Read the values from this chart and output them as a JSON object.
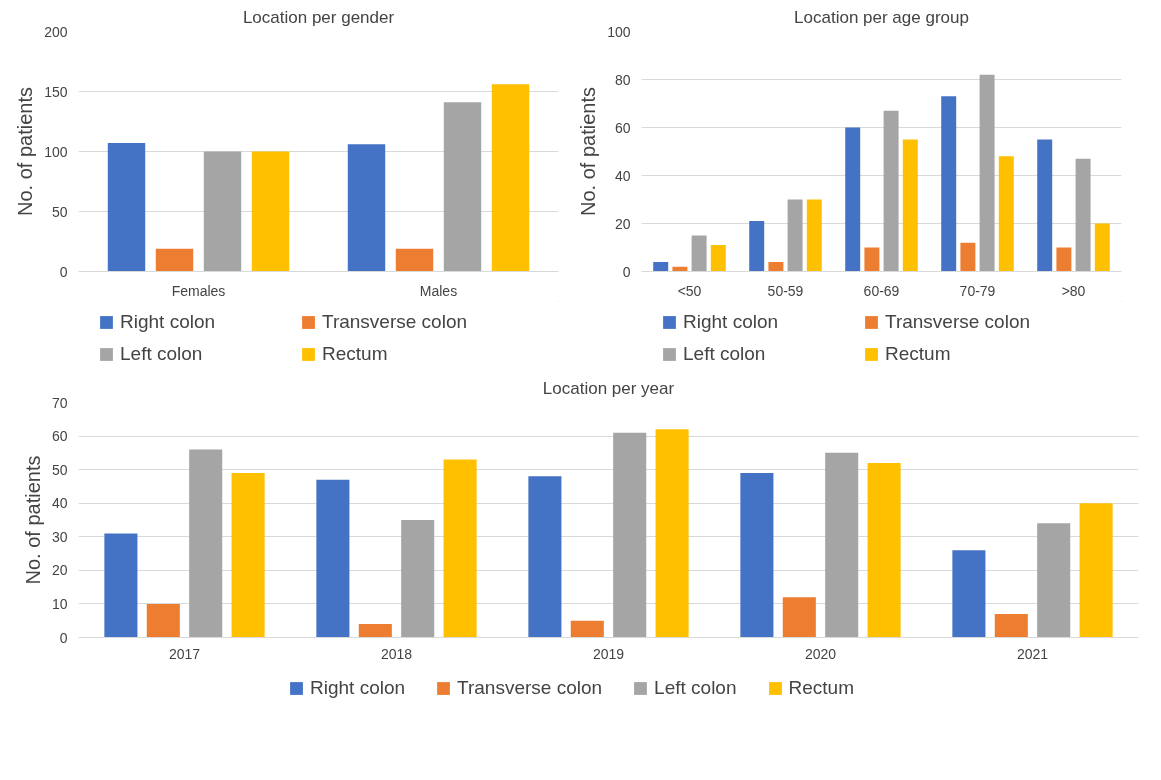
{
  "chart_data": [
    {
      "type": "bar",
      "title": "Location per gender",
      "ylabel": "No. of patients",
      "categories": [
        "Females",
        "Males"
      ],
      "ylim": [
        0,
        200
      ],
      "yticks": [
        0,
        50,
        100,
        150,
        200
      ],
      "grid": "y",
      "legend": "bottom",
      "series": [
        {
          "name": "Right colon",
          "color": "#4472c4",
          "values": [
            107,
            106
          ]
        },
        {
          "name": "Transverse colon",
          "color": "#ed7d31",
          "values": [
            19,
            19
          ]
        },
        {
          "name": "Left colon",
          "color": "#a5a5a5",
          "values": [
            100,
            141
          ]
        },
        {
          "name": "Rectum",
          "color": "#ffc000",
          "values": [
            100,
            156
          ]
        }
      ]
    },
    {
      "type": "bar",
      "title": "Location per age group",
      "ylabel": "No. of patients",
      "categories": [
        "<50",
        "50-59",
        "60-69",
        "70-79",
        ">80"
      ],
      "ylim": [
        0,
        100
      ],
      "yticks": [
        0,
        20,
        40,
        60,
        80,
        100
      ],
      "grid": "y",
      "legend": "bottom",
      "series": [
        {
          "name": "Right colon",
          "color": "#4472c4",
          "values": [
            4,
            21,
            60,
            73,
            55
          ]
        },
        {
          "name": "Transverse colon",
          "color": "#ed7d31",
          "values": [
            2,
            4,
            10,
            12,
            10
          ]
        },
        {
          "name": "Left colon",
          "color": "#a5a5a5",
          "values": [
            15,
            30,
            67,
            82,
            47
          ]
        },
        {
          "name": "Rectum",
          "color": "#ffc000",
          "values": [
            11,
            30,
            55,
            48,
            20
          ]
        }
      ]
    },
    {
      "type": "bar",
      "title": "Location per year",
      "ylabel": "No. of patients",
      "categories": [
        "2017",
        "2018",
        "2019",
        "2020",
        "2021"
      ],
      "ylim": [
        0,
        70
      ],
      "yticks": [
        0,
        10,
        20,
        30,
        40,
        50,
        60,
        70
      ],
      "grid": "y",
      "legend": "bottom",
      "series": [
        {
          "name": "Right colon",
          "color": "#4472c4",
          "values": [
            31,
            47,
            48,
            49,
            26
          ]
        },
        {
          "name": "Transverse colon",
          "color": "#ed7d31",
          "values": [
            10,
            4,
            5,
            12,
            7
          ]
        },
        {
          "name": "Left colon",
          "color": "#a5a5a5",
          "values": [
            56,
            35,
            61,
            55,
            34
          ]
        },
        {
          "name": "Rectum",
          "color": "#ffc000",
          "values": [
            49,
            53,
            62,
            52,
            40
          ]
        }
      ]
    }
  ]
}
